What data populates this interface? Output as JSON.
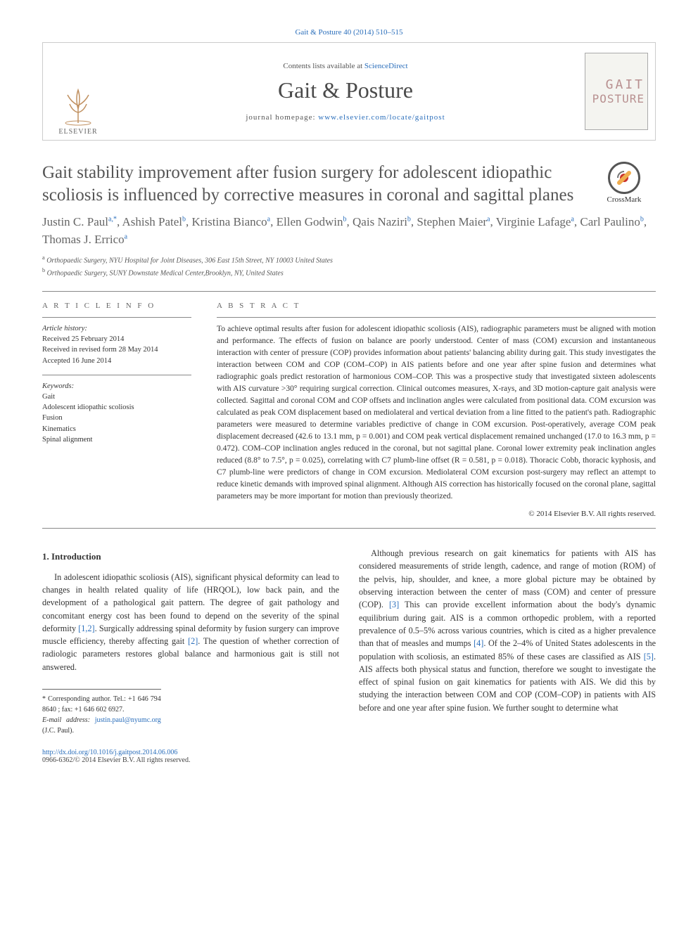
{
  "topLink": {
    "journal": "Gait & Posture",
    "citation": "40 (2014) 510–515"
  },
  "masthead": {
    "contentsLine": "Contents lists available at ",
    "contentsLinkText": "ScienceDirect",
    "journalName": "Gait & Posture",
    "homepageLabel": "journal homepage: ",
    "homepageUrl": "www.elsevier.com/locate/gaitpost",
    "publisherLogoText": "ELSEVIER",
    "coverText1": "GAIT",
    "coverText2": "POSTURE"
  },
  "crossmark": {
    "label": "CrossMark"
  },
  "title": "Gait stability improvement after fusion surgery for adolescent idiopathic scoliosis is influenced by corrective measures in coronal and sagittal planes",
  "authors": "Justin C. Paul|a,*|, Ashish Patel|b|, Kristina Bianco|a|, Ellen Godwin|b|, Qais Naziri|b|, Stephen Maier|a|, Virginie Lafage|a|, Carl Paulino|b|, Thomas J. Errico|a|",
  "affiliations": {
    "a": "Orthopaedic Surgery, NYU Hospital for Joint Diseases, 306 East 15th Street, NY 10003 United States",
    "b": "Orthopaedic Surgery, SUNY Downstate Medical Center,Brooklyn, NY, United States"
  },
  "articleInfo": {
    "head": "A R T I C L E  I N F O",
    "historyLabel": "Article history:",
    "received": "Received 25 February 2014",
    "revised": "Received in revised form 28 May 2014",
    "accepted": "Accepted 16 June 2014",
    "keywordsLabel": "Keywords:",
    "keywords": [
      "Gait",
      "Adolescent idiopathic scoliosis",
      "Fusion",
      "Kinematics",
      "Spinal alignment"
    ]
  },
  "abstract": {
    "head": "A B S T R A C T",
    "text": "To achieve optimal results after fusion for adolescent idiopathic scoliosis (AIS), radiographic parameters must be aligned with motion and performance. The effects of fusion on balance are poorly understood. Center of mass (COM) excursion and instantaneous interaction with center of pressure (COP) provides information about patients' balancing ability during gait. This study investigates the interaction between COM and COP (COM–COP) in AIS patients before and one year after spine fusion and determines what radiographic goals predict restoration of harmonious COM–COP. This was a prospective study that investigated sixteen adolescents with AIS curvature >30° requiring surgical correction. Clinical outcomes measures, X-rays, and 3D motion-capture gait analysis were collected. Sagittal and coronal COM and COP offsets and inclination angles were calculated from positional data. COM excursion was calculated as peak COM displacement based on mediolateral and vertical deviation from a line fitted to the patient's path. Radiographic parameters were measured to determine variables predictive of change in COM excursion. Post-operatively, average COM peak displacement decreased (42.6 to 13.1 mm, p = 0.001) and COM peak vertical displacement remained unchanged (17.0 to 16.3 mm, p = 0.472). COM–COP inclination angles reduced in the coronal, but not sagittal plane. Coronal lower extremity peak inclination angles reduced (8.8° to 7.5°, p = 0.025), correlating with C7 plumb-line offset (R = 0.581, p = 0.018). Thoracic Cobb, thoracic kyphosis, and C7 plumb-line were predictors of change in COM excursion. Mediolateral COM excursion post-surgery may reflect an attempt to reduce kinetic demands with improved spinal alignment. Although AIS correction has historically focused on the coronal plane, sagittal parameters may be more important for motion than previously theorized.",
    "copyright": "© 2014 Elsevier B.V. All rights reserved."
  },
  "body": {
    "introHead": "1. Introduction",
    "p1": "In adolescent idiopathic scoliosis (AIS), significant physical deformity can lead to changes in health related quality of life (HRQOL), low back pain, and the development of a pathological gait pattern. The degree of gait pathology and concomitant energy cost has been found to depend on the severity of the spinal deformity ",
    "p1ref1": "[1,2]",
    "p1b": ". Surgically addressing spinal deformity by fusion surgery can improve muscle efficiency, thereby affecting gait ",
    "p1ref2": "[2]",
    "p1c": ". The question of whether correction of radiologic parameters restores global balance and harmonious gait is still not answered.",
    "p2": "Although previous research on gait kinematics for patients with AIS has considered measurements of stride length, cadence, and range of motion (ROM) of the pelvis, hip, shoulder, and knee, a more global picture may be obtained by observing interaction between the center of mass (COM) and center of pressure (COP). ",
    "p2ref1": "[3]",
    "p2b": " This can provide excellent information about the body's dynamic equilibrium during gait. AIS is a common orthopedic problem, with a reported prevalence of 0.5–5% across various countries, which is cited as a higher prevalence than that of measles and mumps ",
    "p2ref2": "[4]",
    "p2c": ". Of the 2–4% of United States adolescents in the population with scoliosis, an estimated 85% of these cases are classified as AIS ",
    "p2ref3": "[5]",
    "p2d": ". AIS affects both physical status and function, therefore we sought to investigate the effect of spinal fusion on gait kinematics for patients with AIS. We did this by studying the interaction between COM and COP (COM–COP) in patients with AIS before and one year after spine fusion. We further sought to determine what"
  },
  "footnote": {
    "corrLabel": "* Corresponding author. Tel.: +1 646 794 8640 ; fax: +1 646 602 6927.",
    "emailLabel": "E-mail address: ",
    "email": "justin.paul@nyumc.org",
    "emailSuffix": " (J.C. Paul)."
  },
  "footer": {
    "doi": "http://dx.doi.org/10.1016/j.gaitpost.2014.06.006",
    "issn": "0966-6362/© 2014 Elsevier B.V. All rights reserved."
  },
  "colors": {
    "link": "#2a6ebb",
    "textMuted": "#666",
    "border": "#888"
  }
}
